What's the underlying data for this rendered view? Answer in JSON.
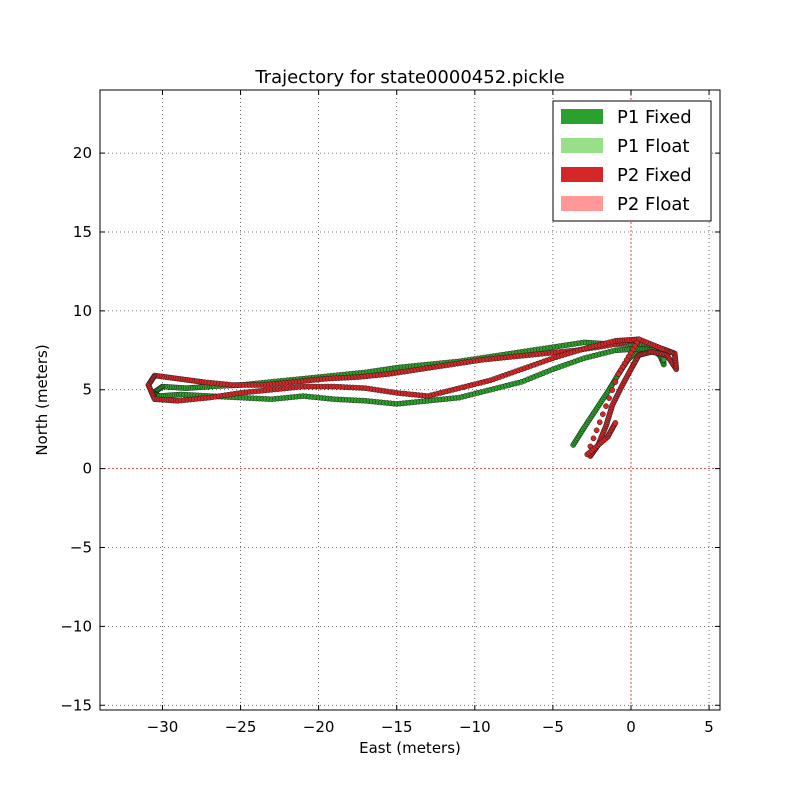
{
  "chart_data": {
    "type": "scatter",
    "title": "Trajectory for state0000452.pickle",
    "xlabel": "East (meters)",
    "ylabel": "North (meters)",
    "xlim": [
      -34,
      5.7
    ],
    "ylim": [
      -15.3,
      24
    ],
    "xticks": [
      -30,
      -25,
      -20,
      -15,
      -10,
      -5,
      0,
      5
    ],
    "yticks": [
      -15,
      -10,
      -5,
      0,
      5,
      10,
      15,
      20
    ],
    "xtick_labels": [
      "−30",
      "−25",
      "−20",
      "−15",
      "−10",
      "−5",
      "0",
      "5"
    ],
    "ytick_labels": [
      "−15",
      "−10",
      "−5",
      "0",
      "5",
      "10",
      "15",
      "20"
    ],
    "grid": true,
    "grid_style": "dotted",
    "reference_lines": {
      "x": 0,
      "y": 0,
      "color": "#e03030"
    },
    "legend_position": "top-right",
    "legend": [
      {
        "label": "P1 Fixed",
        "color": "#2ca02c"
      },
      {
        "label": "P1 Float",
        "color": "#98df8a"
      },
      {
        "label": "P2 Fixed",
        "color": "#d62728"
      },
      {
        "label": "P2 Float",
        "color": "#ff9896"
      }
    ],
    "series": [
      {
        "name": "P1 Fixed",
        "color": "#2ca02c",
        "x": [
          -3.7,
          -3.0,
          -2.2,
          -1.4,
          -0.8,
          -0.2,
          0.6,
          1.4,
          2.0,
          2.1,
          1.7,
          1.0,
          0.0,
          -1.5,
          -3.0,
          -5.0,
          -7.0,
          -9.0,
          -11.0,
          -13.0,
          -15.0,
          -17.0,
          -19.0,
          -21.0,
          -23.0,
          -25.0,
          -27.0,
          -28.5,
          -30.0,
          -30.6,
          -30.2,
          -28.8,
          -27.0,
          -25.0,
          -23.0,
          -21.0,
          -19.0,
          -17.0,
          -15.0,
          -13.0,
          -11.0,
          -9.0,
          -7.0,
          -5.0,
          -3.0,
          -1.0,
          0.5,
          1.5,
          2.1
        ],
        "y": [
          1.5,
          2.6,
          3.8,
          5.0,
          6.0,
          6.9,
          7.6,
          7.8,
          7.5,
          6.6,
          7.6,
          7.8,
          7.9,
          7.9,
          8.0,
          7.7,
          7.4,
          7.1,
          6.8,
          6.6,
          6.4,
          6.1,
          5.9,
          5.7,
          5.5,
          5.3,
          5.2,
          5.1,
          5.2,
          4.8,
          4.6,
          4.7,
          4.6,
          4.5,
          4.4,
          4.6,
          4.4,
          4.3,
          4.1,
          4.3,
          4.5,
          5.0,
          5.5,
          6.3,
          7.0,
          7.5,
          7.6,
          7.5,
          6.9
        ]
      },
      {
        "name": "P1 Float",
        "color": "#98df8a",
        "x": [],
        "y": []
      },
      {
        "name": "P2 Fixed",
        "color": "#d62728",
        "x": [
          -2.6,
          -2.1,
          -1.6,
          -1.2,
          -0.6,
          0.0,
          0.5,
          1.3,
          2.3,
          2.9,
          2.8,
          2.0,
          0.5,
          -1.5,
          -3.5,
          -5.5,
          -7.5,
          -9.5,
          -11.5,
          -13.5,
          -15.5,
          -17.5,
          -19.5,
          -21.5,
          -23.5,
          -25.5,
          -27.5,
          -29.0,
          -30.5,
          -30.9,
          -30.5,
          -29.0,
          -27.0,
          -25.0,
          -23.0,
          -21.0,
          -19.0,
          -17.0,
          -15.0,
          -13.0,
          -11.0,
          -9.0,
          -7.0,
          -5.0,
          -3.0,
          -1.0,
          0.5,
          -0.8,
          -2.8,
          -1.5,
          -1.0
        ],
        "y": [
          0.8,
          1.5,
          2.7,
          4.0,
          5.2,
          6.3,
          7.2,
          7.4,
          7.2,
          6.3,
          7.3,
          7.6,
          8.2,
          7.8,
          7.5,
          7.3,
          7.1,
          6.9,
          6.6,
          6.3,
          6.0,
          5.8,
          5.7,
          5.5,
          5.3,
          5.3,
          5.5,
          5.7,
          5.9,
          5.3,
          4.4,
          4.3,
          4.5,
          4.8,
          5.0,
          5.2,
          5.2,
          5.1,
          4.8,
          4.6,
          5.1,
          5.6,
          6.3,
          7.0,
          7.6,
          8.1,
          8.2,
          6.0,
          0.9,
          2.0,
          2.9
        ]
      },
      {
        "name": "P2 Float",
        "color": "#ff9896",
        "x": [],
        "y": []
      }
    ]
  }
}
